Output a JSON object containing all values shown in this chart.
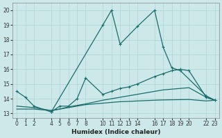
{
  "xlabel": "Humidex (Indice chaleur)",
  "background_color": "#cce8e8",
  "grid_color": "#b0d8d8",
  "line_color": "#1a6b6b",
  "ylim": [
    12.7,
    20.5
  ],
  "xlim": [
    -0.5,
    23.5
  ],
  "yticks": [
    13,
    14,
    15,
    16,
    17,
    18,
    19,
    20
  ],
  "xticks": [
    0,
    1,
    2,
    4,
    5,
    6,
    7,
    8,
    10,
    11,
    12,
    13,
    14,
    16,
    17,
    18,
    19,
    20,
    22,
    23
  ],
  "series1_x": [
    0,
    1,
    2,
    4,
    10,
    11,
    12,
    14,
    16,
    17,
    18,
    19,
    22,
    23
  ],
  "series1_y": [
    14.5,
    14.1,
    13.5,
    13.1,
    19.0,
    20.0,
    17.7,
    18.9,
    20.0,
    17.5,
    16.1,
    15.9,
    14.2,
    13.9
  ],
  "series2_x": [
    4,
    5,
    6,
    7,
    8,
    10,
    11,
    12,
    13,
    14,
    16,
    17,
    18,
    19,
    20,
    22,
    23
  ],
  "series2_y": [
    13.1,
    13.5,
    13.5,
    14.0,
    15.4,
    14.3,
    14.5,
    14.7,
    14.8,
    15.0,
    15.5,
    15.7,
    15.9,
    16.0,
    15.9,
    14.1,
    13.9
  ],
  "series3_x": [
    0,
    1,
    2,
    4,
    5,
    6,
    7,
    8,
    10,
    11,
    12,
    13,
    14,
    16,
    17,
    18,
    19,
    20,
    22,
    23
  ],
  "series3_y": [
    13.3,
    13.3,
    13.3,
    13.2,
    13.3,
    13.4,
    13.5,
    13.6,
    13.7,
    13.75,
    13.8,
    13.82,
    13.85,
    13.9,
    13.92,
    13.93,
    13.94,
    13.95,
    13.85,
    13.9
  ],
  "series4_x": [
    0,
    1,
    2,
    4,
    5,
    6,
    7,
    8,
    10,
    11,
    12,
    13,
    14,
    16,
    17,
    18,
    19,
    20,
    22,
    23
  ],
  "series4_y": [
    13.5,
    13.45,
    13.4,
    13.2,
    13.3,
    13.45,
    13.55,
    13.65,
    13.9,
    14.0,
    14.1,
    14.2,
    14.3,
    14.5,
    14.6,
    14.65,
    14.7,
    14.75,
    14.1,
    13.9
  ]
}
